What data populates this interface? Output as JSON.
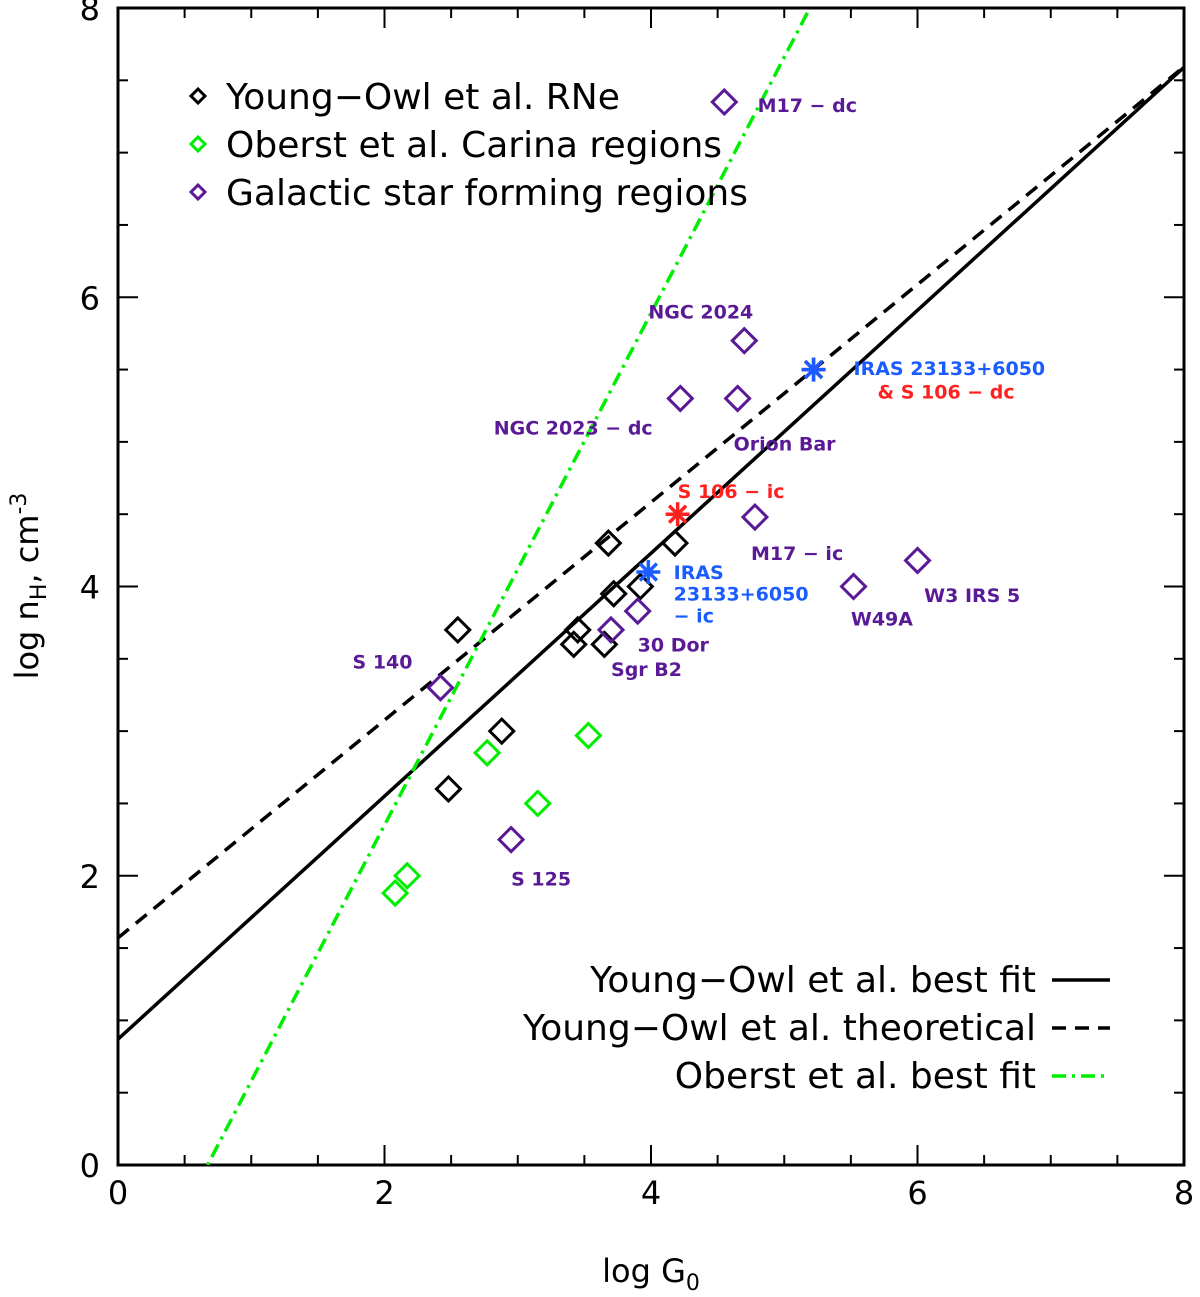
{
  "chart_data": {
    "type": "scatter",
    "xlabel": "log G",
    "xlabel_sub": "0",
    "ylabel": "log n",
    "ylabel_sub": "H",
    "ylabel_unit": ", cm",
    "ylabel_sup": "-3",
    "xlim": [
      0,
      8
    ],
    "ylim": [
      0,
      8
    ],
    "x_ticks": [
      "0",
      "2",
      "4",
      "6",
      "8"
    ],
    "y_ticks": [
      "0",
      "2",
      "4",
      "6",
      "8"
    ],
    "grid": false,
    "legend_top": [
      {
        "label": "Young−Owl et al. RNe",
        "color": "#000000"
      },
      {
        "label": "Oberst et al. Carina regions",
        "color": "#00ee00"
      },
      {
        "label": "Galactic star forming regions",
        "color": "#5a1a96"
      }
    ],
    "legend_bottom": [
      {
        "label": "Young−Owl et al. best fit",
        "style": "solid",
        "color": "#000000"
      },
      {
        "label": "Young−Owl et al. theoretical",
        "style": "dashed",
        "color": "#000000"
      },
      {
        "label": "Oberst et al. best fit",
        "style": "dashdot",
        "color": "#00ee00"
      }
    ],
    "lines": [
      {
        "style": "solid",
        "color": "#000000",
        "intercept": 0.87,
        "slope": 0.84
      },
      {
        "style": "dashed",
        "color": "#000000",
        "intercept": 1.57,
        "slope": 0.753
      },
      {
        "style": "dashdot",
        "color": "#00ee00",
        "intercept": -1.19,
        "slope": 1.77
      }
    ],
    "series": [
      {
        "name": "Young−Owl et al. RNe",
        "color": "#000000",
        "points": [
          [
            2.48,
            2.6
          ],
          [
            2.55,
            3.7
          ],
          [
            2.88,
            3.0
          ],
          [
            3.42,
            3.6
          ],
          [
            3.45,
            3.7
          ],
          [
            3.65,
            3.6
          ],
          [
            3.68,
            4.3
          ],
          [
            3.72,
            3.95
          ],
          [
            3.92,
            4.0
          ],
          [
            4.18,
            4.3
          ]
        ]
      },
      {
        "name": "Oberst et al. Carina regions",
        "color": "#00ee00",
        "points": [
          [
            2.08,
            1.88
          ],
          [
            2.17,
            2.0
          ],
          [
            2.77,
            2.85
          ],
          [
            3.15,
            2.5
          ],
          [
            3.53,
            2.97
          ]
        ]
      },
      {
        "name": "Galactic star forming regions",
        "color": "#5a1a96",
        "points": [
          [
            2.42,
            3.3
          ],
          [
            2.95,
            2.25
          ],
          [
            3.7,
            3.7
          ],
          [
            3.9,
            3.83
          ],
          [
            4.22,
            5.3
          ],
          [
            4.55,
            7.35
          ],
          [
            4.65,
            5.3
          ],
          [
            4.7,
            5.7
          ],
          [
            4.78,
            4.48
          ],
          [
            5.52,
            4.0
          ],
          [
            6.0,
            4.18
          ]
        ]
      }
    ],
    "stars": [
      {
        "x": 4.2,
        "y": 4.5,
        "color": "#ff2020"
      },
      {
        "x": 5.22,
        "y": 5.5,
        "color": "#ff2020"
      },
      {
        "x": 3.98,
        "y": 4.1,
        "color": "#1a5cff"
      },
      {
        "x": 5.22,
        "y": 5.5,
        "color": "#1a5cff"
      }
    ],
    "annotations": [
      {
        "text": "M17 − dc",
        "color": "#5a1a96",
        "x": 4.8,
        "y": 7.33
      },
      {
        "text": "NGC 2024",
        "color": "#5a1a96",
        "x": 3.98,
        "y": 5.9
      },
      {
        "text": "NGC 2023 − dc",
        "color": "#5a1a96",
        "x": 2.82,
        "y": 5.1
      },
      {
        "text": "Orion Bar",
        "color": "#5a1a96",
        "x": 4.62,
        "y": 4.99
      },
      {
        "text": "IRAS 23133+6050",
        "color": "#1a5cff",
        "x": 5.52,
        "y": 5.51
      },
      {
        "text": "& S 106 − dc",
        "color": "#ff2020",
        "x": 5.7,
        "y": 5.35
      },
      {
        "text": "S 106 − ic",
        "color": "#ff2020",
        "x": 4.2,
        "y": 4.66
      },
      {
        "text": "M17 − ic",
        "color": "#5a1a96",
        "x": 4.75,
        "y": 4.23
      },
      {
        "text": "IRAS",
        "color": "#1a5cff",
        "x": 4.17,
        "y": 4.1
      },
      {
        "text": "23133+6050",
        "color": "#1a5cff",
        "x": 4.17,
        "y": 3.95
      },
      {
        "text": "− ic",
        "color": "#1a5cff",
        "x": 4.17,
        "y": 3.8
      },
      {
        "text": "W49A",
        "color": "#5a1a96",
        "x": 5.5,
        "y": 3.78
      },
      {
        "text": "W3 IRS 5",
        "color": "#5a1a96",
        "x": 6.05,
        "y": 3.94
      },
      {
        "text": "30 Dor",
        "color": "#5a1a96",
        "x": 3.9,
        "y": 3.6
      },
      {
        "text": "Sgr B2",
        "color": "#5a1a96",
        "x": 3.7,
        "y": 3.43
      },
      {
        "text": "S 140",
        "color": "#5a1a96",
        "x": 1.76,
        "y": 3.48
      },
      {
        "text": "S 125",
        "color": "#5a1a96",
        "x": 2.95,
        "y": 1.98
      }
    ]
  }
}
